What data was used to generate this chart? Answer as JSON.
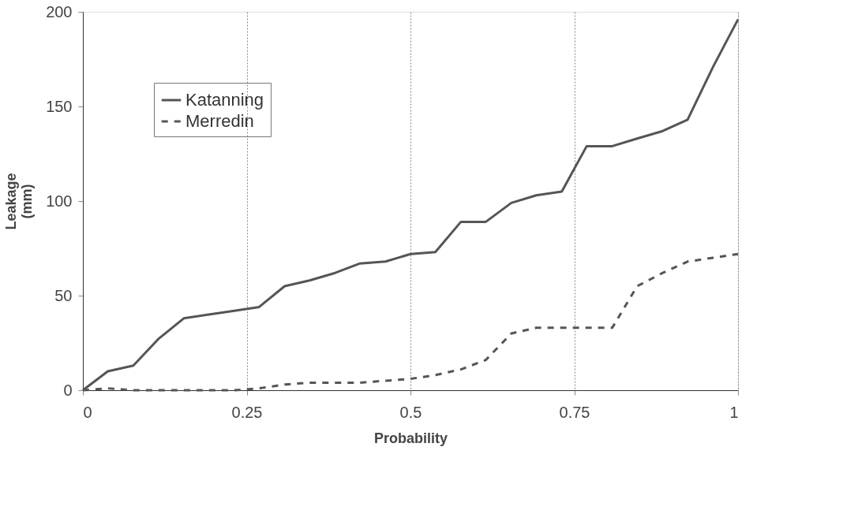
{
  "chart_data": {
    "type": "line",
    "xlabel": "Probability",
    "ylabel": "Leakage\n(mm)",
    "x": [
      0,
      0.038,
      0.077,
      0.115,
      0.154,
      0.192,
      0.231,
      0.269,
      0.308,
      0.346,
      0.385,
      0.423,
      0.462,
      0.5,
      0.538,
      0.577,
      0.615,
      0.654,
      0.692,
      0.731,
      0.769,
      0.808,
      0.846,
      0.885,
      0.923,
      0.962,
      1
    ],
    "series": [
      {
        "name": "Katanning",
        "color": "#555555",
        "line_style": "solid",
        "values": [
          0,
          10,
          13,
          27,
          38,
          40,
          42,
          44,
          55,
          58,
          62,
          67,
          68,
          72,
          73,
          89,
          89,
          99,
          103,
          105,
          129,
          129,
          133,
          137,
          143,
          171,
          196
        ]
      },
      {
        "name": "Merredin",
        "color": "#555555",
        "line_style": "dashed",
        "values": [
          0,
          1,
          0,
          0,
          0,
          0,
          0,
          1,
          3,
          4,
          4,
          4,
          5,
          6,
          8,
          11,
          16,
          30,
          33,
          33,
          33,
          33,
          55,
          62,
          68,
          70,
          72
        ]
      }
    ],
    "xlim": [
      0,
      1
    ],
    "xticks": [
      0,
      0.25,
      0.5,
      0.75,
      1
    ],
    "ylim": [
      0,
      200
    ],
    "yticks": [
      0,
      50,
      100,
      150,
      200
    ],
    "grid": "x",
    "legend": "top left",
    "marker": "none"
  }
}
